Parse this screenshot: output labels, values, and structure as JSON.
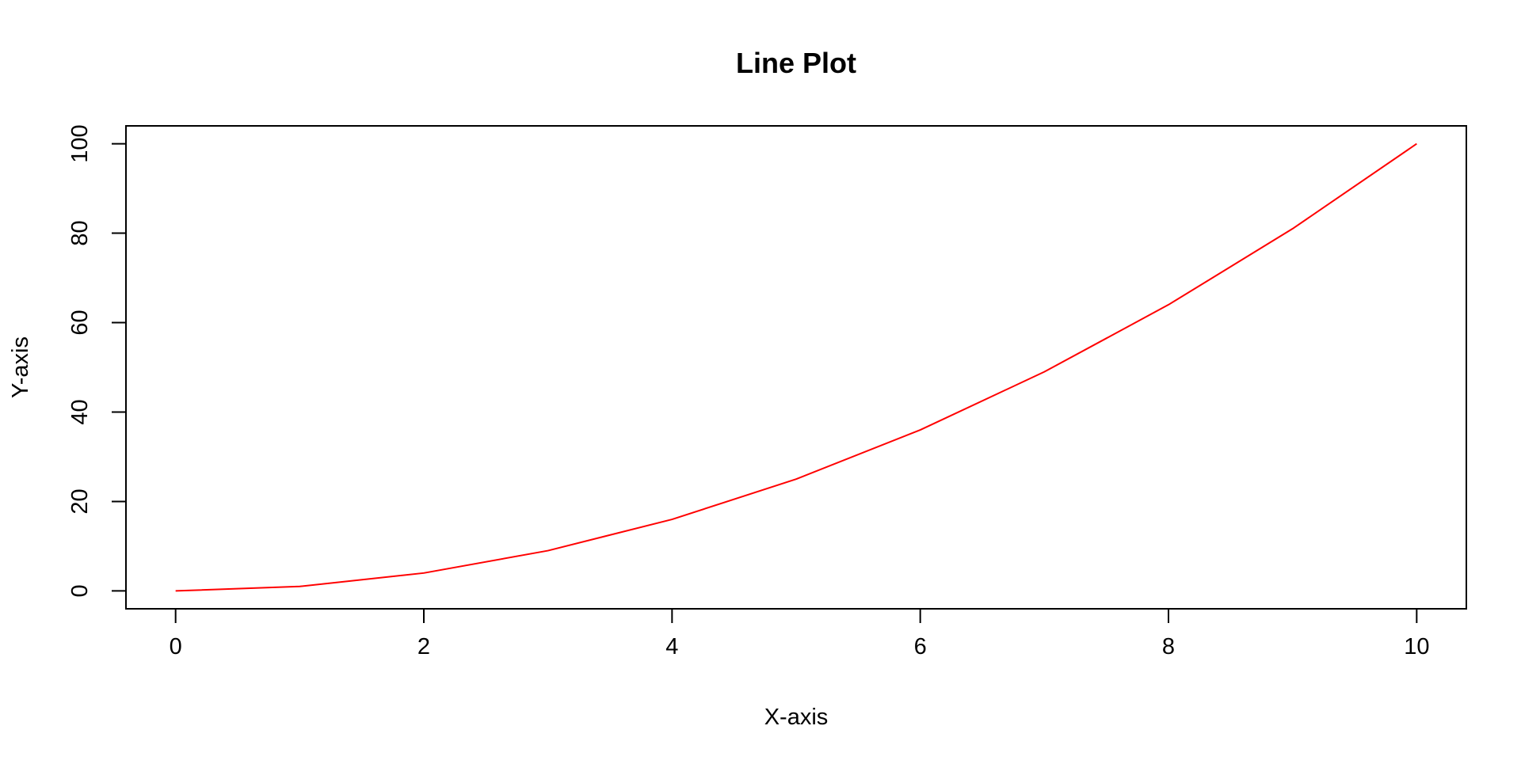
{
  "chart_data": {
    "type": "line",
    "title": "Line Plot",
    "xlabel": "X-axis",
    "ylabel": "Y-axis",
    "x": [
      0,
      1,
      2,
      3,
      4,
      5,
      6,
      7,
      8,
      9,
      10
    ],
    "series": [
      {
        "values": [
          0,
          1,
          4,
          9,
          16,
          25,
          36,
          49,
          64,
          81,
          100
        ],
        "color": "#ff0000"
      }
    ],
    "xlim": [
      -0.4,
      10.4
    ],
    "ylim": [
      -4,
      104
    ],
    "x_ticks": [
      0,
      2,
      4,
      6,
      8,
      10
    ],
    "y_ticks": [
      0,
      20,
      40,
      60,
      80,
      100
    ],
    "x_tick_labels": [
      "0",
      "2",
      "4",
      "6",
      "8",
      "10"
    ],
    "y_tick_labels": [
      "0",
      "20",
      "40",
      "60",
      "80",
      "100"
    ],
    "grid": false,
    "legend": "none"
  }
}
